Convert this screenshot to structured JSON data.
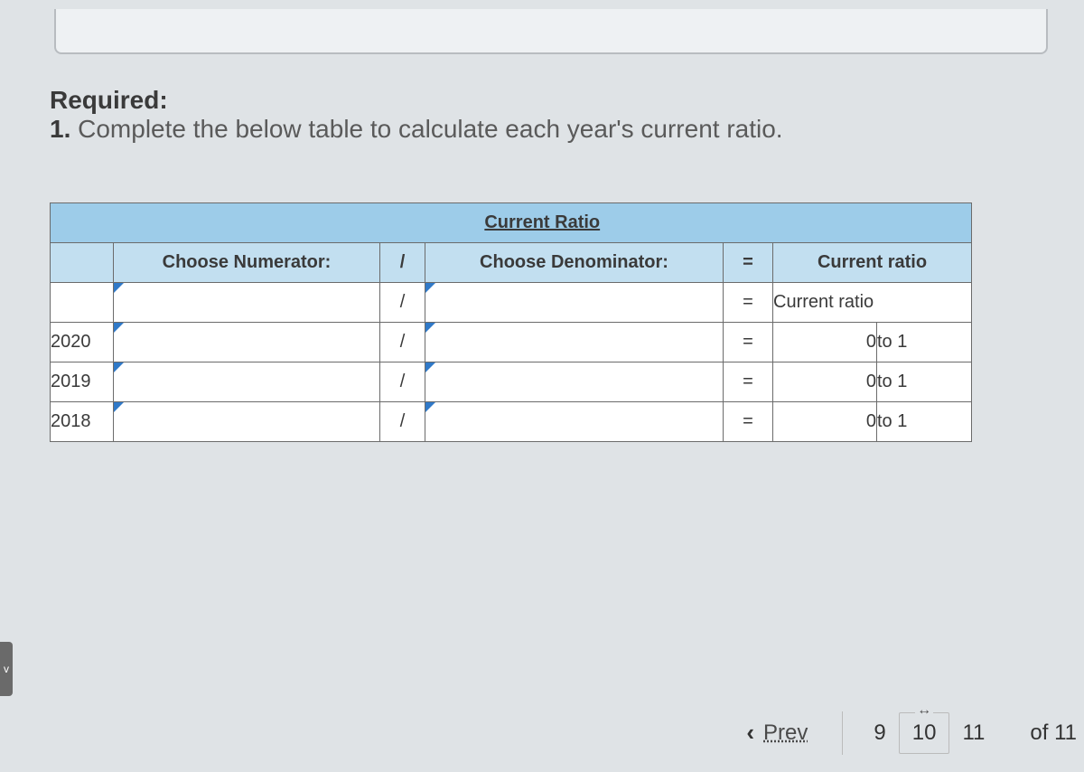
{
  "required": {
    "title": "Required:",
    "number": "1.",
    "instruction": "Complete the below table to calculate each year's current ratio."
  },
  "table": {
    "title": "Current Ratio",
    "headers": {
      "numerator": "Choose Numerator:",
      "slash": "/",
      "denominator": "Choose Denominator:",
      "equals": "=",
      "ratio_label": "Current ratio"
    },
    "labels_row": {
      "slash": "/",
      "equals": "=",
      "ratio_text": "Current ratio"
    },
    "rows": [
      {
        "year": "2020",
        "slash": "/",
        "equals": "=",
        "value": "0",
        "suffix": "to 1"
      },
      {
        "year": "2019",
        "slash": "/",
        "equals": "=",
        "value": "0",
        "suffix": "to 1"
      },
      {
        "year": "2018",
        "slash": "/",
        "equals": "=",
        "value": "0",
        "suffix": "to 1"
      }
    ]
  },
  "nav": {
    "prev": "Prev",
    "pages": {
      "p9": "9",
      "p10": "10",
      "p11": "11"
    },
    "of_label": "of",
    "total": "11"
  },
  "colors": {
    "header_bg": "#9dcce9",
    "subheader_bg": "#c2dff0",
    "dropdown_corner": "#3079c8",
    "page_bg": "#dfe3e6",
    "border": "#6b6b6b"
  }
}
